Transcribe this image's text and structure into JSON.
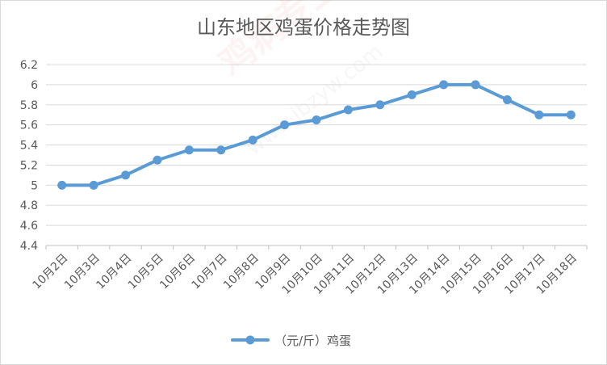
{
  "chart_data": {
    "type": "line",
    "title": "山东地区鸡蛋价格走势图",
    "categories": [
      "10月2日",
      "10月3日",
      "10月4日",
      "10月5日",
      "10月6日",
      "10月7日",
      "10月8日",
      "10月9日",
      "10月10日",
      "10月11日",
      "10月12日",
      "10月13日",
      "10月14日",
      "10月15日",
      "10月16日",
      "10月17日",
      "10月18日"
    ],
    "series": [
      {
        "name": "（元/斤）鸡蛋",
        "values": [
          5.0,
          5.0,
          5.1,
          5.25,
          5.35,
          5.35,
          5.45,
          5.6,
          5.65,
          5.75,
          5.8,
          5.9,
          6.0,
          6.0,
          5.85,
          5.7,
          5.7
        ]
      }
    ],
    "ylim": [
      4.4,
      6.2
    ],
    "yticks": [
      "6.2",
      "6",
      "5.8",
      "5.6",
      "5.4",
      "5.2",
      "5",
      "4.8",
      "4.6",
      "4.4"
    ],
    "grid": true,
    "legend_position": "bottom",
    "colors": {
      "line": "#5b9bd5",
      "grid": "#d9d9d9",
      "text": "#595959"
    }
  },
  "watermark": {
    "brand": "鸡病专业网",
    "url": "www.jbzyw.com",
    "slogan": "专 业 · 行 业 · 网"
  }
}
